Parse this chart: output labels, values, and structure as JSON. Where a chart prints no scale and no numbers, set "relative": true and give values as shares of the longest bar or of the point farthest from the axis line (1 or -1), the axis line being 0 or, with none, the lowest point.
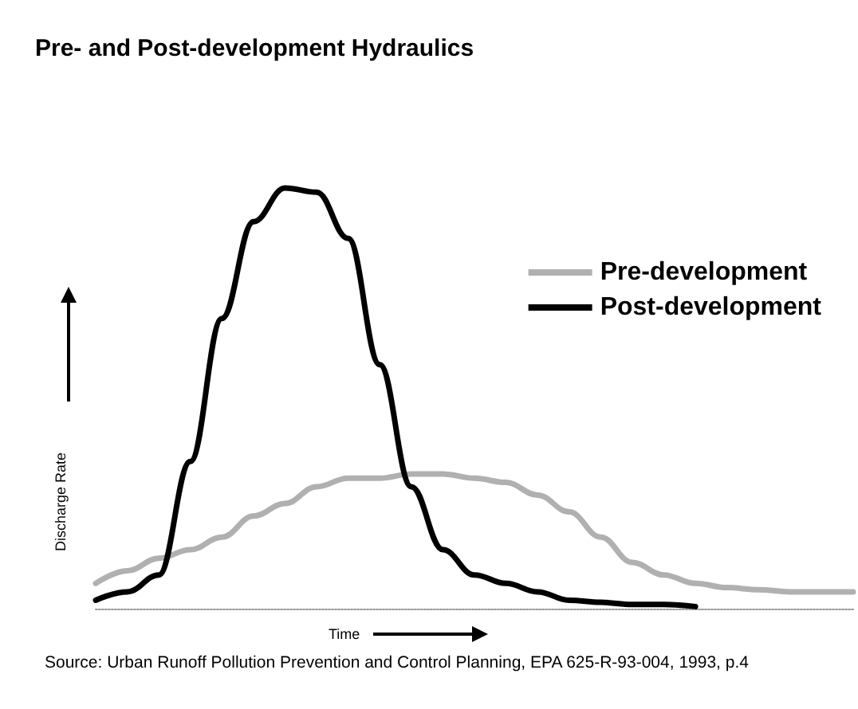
{
  "chart_data": {
    "type": "line",
    "title": "Pre- and Post-development Hydraulics",
    "xlabel": "Time",
    "ylabel": "Discharge Rate",
    "relative": true,
    "legend": "top right",
    "marker": "none",
    "categories": [
      null,
      null,
      null,
      null,
      null,
      null,
      null,
      null,
      null,
      null,
      null,
      null,
      null,
      null,
      null,
      null,
      null,
      null,
      null,
      null,
      null,
      null,
      null,
      null,
      null
    ],
    "series": [
      {
        "name": "Pre-development",
        "color": "#b0b0b0",
        "values": [
          0.06,
          0.09,
          0.12,
          0.14,
          0.17,
          0.22,
          0.25,
          0.29,
          0.31,
          0.31,
          0.32,
          0.32,
          0.31,
          0.3,
          0.27,
          0.23,
          0.17,
          0.11,
          0.08,
          0.06,
          0.05,
          0.045,
          0.04,
          0.04,
          0.04
        ]
      },
      {
        "name": "Post-development",
        "color": "#000000",
        "values": [
          0.02,
          0.04,
          0.08,
          0.35,
          0.69,
          0.92,
          1,
          0.99,
          0.88,
          0.58,
          0.29,
          0.14,
          0.08,
          0.06,
          0.04,
          0.02,
          0.015,
          0.01,
          0.01,
          0.005,
          null,
          null,
          null,
          null,
          null
        ]
      }
    ],
    "annotations": [
      "Source: Urban Runoff Pollution Prevention and Control Planning, EPA 625-R-93-004, 1993, p.4"
    ]
  }
}
